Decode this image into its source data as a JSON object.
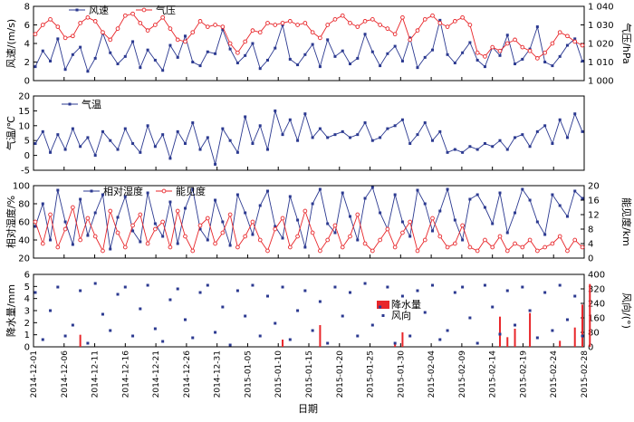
{
  "chart_data": {
    "type": "line",
    "dates": [
      "2014-12-01",
      "2014-12-06",
      "2014-12-11",
      "2014-12-16",
      "2014-12-21",
      "2014-12-26",
      "2014-12-31",
      "2015-01-05",
      "2015-01-10",
      "2015-01-15",
      "2015-01-20",
      "2015-01-25",
      "2015-01-30",
      "2015-02-04",
      "2015-02-09",
      "2015-02-14",
      "2015-02-19",
      "2015-02-24",
      "2015-02-28"
    ],
    "xlabel": "日期",
    "colors": {
      "blue": "#2b3990",
      "red": "#e8262a"
    },
    "panels": [
      {
        "id": "wind_pressure",
        "ylabel_left": "风速/(m/s)",
        "ylim_left": [
          0,
          8
        ],
        "yticks_left": [
          "0",
          "2",
          "4",
          "6",
          "8"
        ],
        "ylabel_right": "气压/hPa",
        "ylim_right": [
          1000,
          1040
        ],
        "yticks_right": [
          "1 000",
          "1 010",
          "1 020",
          "1 030",
          "1 040"
        ],
        "series": [
          {
            "name": "风速",
            "axis": "left",
            "color": "#2b3990",
            "marker": "square",
            "values": [
              1.5,
              3.2,
              2.1,
              4.5,
              1.2,
              2.8,
              3.6,
              1.0,
              2.4,
              5.1,
              3.0,
              1.8,
              2.6,
              4.2,
              1.4,
              3.3,
              2.2,
              1.1,
              3.8,
              2.5,
              4.8,
              2.0,
              1.6,
              3.1,
              2.9,
              5.5,
              3.4,
              1.9,
              2.7,
              4.0,
              1.3,
              2.2,
              3.5,
              6.0,
              2.3,
              1.7,
              2.8,
              3.9,
              1.5,
              4.4,
              2.6,
              3.2,
              1.8,
              2.4,
              5.0,
              3.1,
              1.6,
              2.9,
              3.7,
              2.1,
              4.6,
              1.4,
              2.5,
              3.3,
              6.5,
              2.8,
              1.9,
              3.0,
              4.1,
              2.2,
              1.5,
              3.6,
              2.7,
              4.9,
              1.8,
              2.3,
              3.4,
              5.8,
              2.0,
              1.6,
              2.6,
              3.8,
              4.5,
              2.1
            ]
          },
          {
            "name": "气压",
            "axis": "right",
            "color": "#e8262a",
            "marker": "circle-open",
            "values": [
              1025,
              1030,
              1033,
              1029,
              1023,
              1024,
              1031,
              1034,
              1032,
              1026,
              1022,
              1028,
              1035,
              1036,
              1031,
              1027,
              1030,
              1034,
              1028,
              1022,
              1021,
              1026,
              1032,
              1029,
              1030,
              1029,
              1020,
              1015,
              1021,
              1027,
              1026,
              1031,
              1030,
              1031,
              1032,
              1030,
              1031,
              1026,
              1023,
              1030,
              1033,
              1035,
              1031,
              1029,
              1032,
              1033,
              1030,
              1028,
              1025,
              1034,
              1022,
              1027,
              1033,
              1035,
              1031,
              1029,
              1032,
              1034,
              1030,
              1015,
              1013,
              1018,
              1016,
              1020,
              1022,
              1018,
              1016,
              1012,
              1015,
              1020,
              1026,
              1024,
              1021,
              1019
            ]
          }
        ]
      },
      {
        "id": "temperature",
        "ylabel_left": "气温/℃",
        "ylim_left": [
          -5,
          20
        ],
        "yticks_left": [
          "-5",
          "0",
          "5",
          "10",
          "15",
          "20"
        ],
        "series": [
          {
            "name": "气温",
            "axis": "left",
            "color": "#2b3990",
            "marker": "square",
            "values": [
              4,
              8,
              1,
              7,
              2,
              9,
              3,
              6,
              0,
              8,
              5,
              2,
              9,
              4,
              1,
              10,
              3,
              7,
              -1,
              8,
              4,
              11,
              2,
              6,
              -3,
              9,
              5,
              1,
              13,
              4,
              10,
              2,
              15,
              7,
              12,
              5,
              14,
              6,
              9,
              6,
              7,
              8,
              6,
              7,
              11,
              5,
              6,
              9,
              10,
              12,
              4,
              7,
              11,
              5,
              8,
              1,
              2,
              1,
              3,
              2,
              4,
              3,
              5,
              2,
              6,
              7,
              3,
              8,
              10,
              4,
              12,
              6,
              14,
              8
            ]
          }
        ]
      },
      {
        "id": "humidity_visibility",
        "ylabel_left": "相对湿度/%",
        "ylim_left": [
          20,
          100
        ],
        "yticks_left": [
          "20",
          "40",
          "60",
          "80",
          "100"
        ],
        "ylabel_right": "能见度/km",
        "ylim_right": [
          0,
          20
        ],
        "yticks_right": [
          "0",
          "4",
          "8",
          "12",
          "16",
          "20"
        ],
        "series": [
          {
            "name": "相对湿度",
            "axis": "left",
            "color": "#2b3990",
            "marker": "square",
            "values": [
              55,
              80,
              40,
              95,
              60,
              35,
              85,
              45,
              70,
              90,
              30,
              65,
              88,
              50,
              38,
              92,
              58,
              44,
              82,
              36,
              75,
              96,
              52,
              40,
              84,
              60,
              34,
              90,
              70,
              46,
              78,
              94,
              55,
              42,
              88,
              62,
              32,
              80,
              96,
              58,
              48,
              92,
              66,
              40,
              86,
              98,
              70,
              52,
              90,
              60,
              44,
              95,
              80,
              50,
              72,
              96,
              62,
              40,
              85,
              90,
              76,
              58,
              92,
              48,
              70,
              96,
              84,
              60,
              46,
              90,
              78,
              66,
              94,
              86
            ]
          },
          {
            "name": "能见度",
            "axis": "right",
            "color": "#e8262a",
            "marker": "circle-open",
            "values": [
              10,
              4,
              12,
              3,
              8,
              14,
              5,
              11,
              6,
              2,
              13,
              7,
              3,
              9,
              12,
              4,
              8,
              10,
              3,
              13,
              6,
              2,
              9,
              11,
              4,
              7,
              12,
              3,
              6,
              10,
              5,
              2,
              8,
              11,
              3,
              6,
              13,
              7,
              2,
              5,
              9,
              3,
              6,
              12,
              4,
              2,
              5,
              8,
              3,
              7,
              10,
              2,
              5,
              11,
              6,
              3,
              4,
              9,
              3,
              2,
              5,
              3,
              6,
              2,
              4,
              3,
              5,
              2,
              3,
              4,
              6,
              2,
              5,
              3
            ]
          }
        ]
      },
      {
        "id": "precip_winddir",
        "ylabel_left": "降水量/mm",
        "ylim_left": [
          0,
          6
        ],
        "yticks_left": [
          "0",
          "1",
          "2",
          "3",
          "4",
          "5",
          "6"
        ],
        "ylabel_right": "风向/(°)",
        "ylim_right": [
          0,
          400
        ],
        "yticks_right": [
          "0",
          "80",
          "160",
          "240",
          "320",
          "400"
        ],
        "series": [
          {
            "name": "降水量",
            "axis": "left",
            "type": "bar",
            "color": "#e8262a",
            "x": [
              6,
              33,
              38,
              48,
              49,
              62,
              63,
              64,
              66,
              70,
              72,
              73,
              74
            ],
            "values": [
              1.0,
              0.6,
              1.8,
              0.4,
              1.2,
              2.5,
              0.8,
              1.5,
              2.8,
              0.5,
              1.6,
              3.5,
              5.2
            ]
          },
          {
            "name": "风向",
            "axis": "right",
            "type": "scatter",
            "color": "#2b3990",
            "marker": "square",
            "values": [
              300,
              40,
              200,
              330,
              60,
              120,
              310,
              20,
              350,
              180,
              90,
              290,
              330,
              60,
              210,
              340,
              100,
              30,
              260,
              320,
              150,
              50,
              300,
              340,
              80,
              220,
              10,
              310,
              170,
              340,
              60,
              280,
              130,
              330,
              40,
              200,
              310,
              90,
              250,
              20,
              330,
              170,
              300,
              60,
              350,
              120,
              220,
              330,
              20,
              280,
              60,
              310,
              190,
              340,
              40,
              90,
              300,
              330,
              160,
              20,
              340,
              220,
              70,
              310,
              120,
              330,
              200,
              50,
              300,
              90,
              340,
              150,
              280,
              60
            ]
          }
        ]
      }
    ]
  }
}
